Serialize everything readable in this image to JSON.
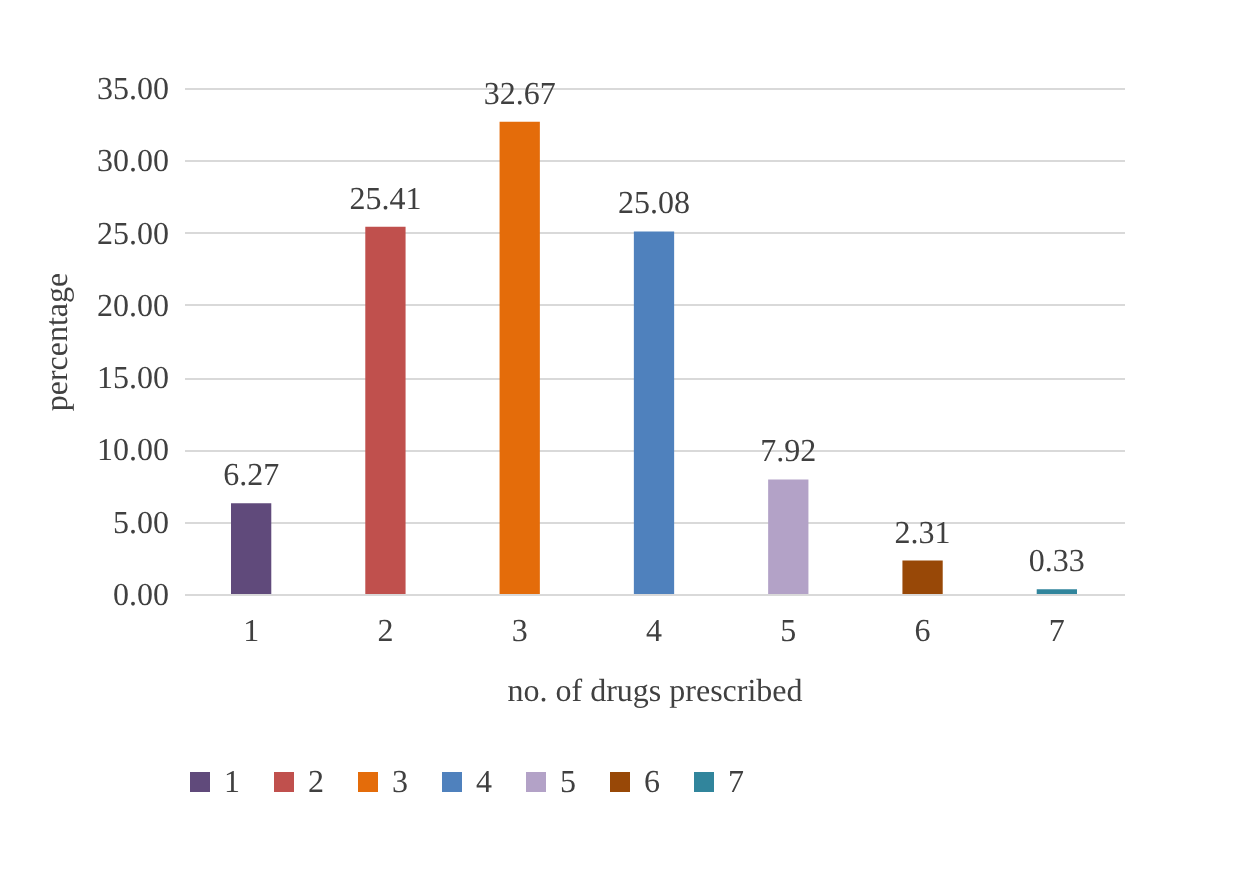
{
  "chart_data": {
    "type": "bar",
    "xlabel": "no. of drugs prescribed",
    "ylabel": "percentage",
    "categories": [
      "1",
      "2",
      "3",
      "4",
      "5",
      "6",
      "7"
    ],
    "stacked": true,
    "series": [
      {
        "name": "1",
        "color": "#604a7b",
        "values": [
          6.27,
          null,
          null,
          null,
          null,
          null,
          null
        ]
      },
      {
        "name": "2",
        "color": "#c0504d",
        "values": [
          null,
          25.41,
          null,
          null,
          null,
          null,
          null
        ]
      },
      {
        "name": "3",
        "color": "#e46c0a",
        "values": [
          null,
          null,
          32.67,
          null,
          null,
          null,
          null
        ]
      },
      {
        "name": "4",
        "color": "#4f81bd",
        "values": [
          null,
          null,
          null,
          25.08,
          null,
          null,
          null
        ]
      },
      {
        "name": "5",
        "color": "#b3a2c7",
        "values": [
          null,
          null,
          null,
          null,
          7.92,
          null,
          null
        ]
      },
      {
        "name": "6",
        "color": "#984807",
        "values": [
          null,
          null,
          null,
          null,
          null,
          2.31,
          null
        ]
      },
      {
        "name": "7",
        "color": "#31859c",
        "values": [
          null,
          null,
          null,
          null,
          null,
          null,
          0.33
        ]
      }
    ],
    "ylim": [
      0,
      35
    ],
    "yticks": [
      {
        "value": 0,
        "label": "0.00"
      },
      {
        "value": 5,
        "label": "5.00"
      },
      {
        "value": 10,
        "label": "10.00"
      },
      {
        "value": 15,
        "label": "15.00"
      },
      {
        "value": 20,
        "label": "20.00"
      },
      {
        "value": 25,
        "label": "25.00"
      },
      {
        "value": 30,
        "label": "30.00"
      },
      {
        "value": 35,
        "label": "35.00"
      }
    ],
    "grid": "y",
    "legend": "bottom",
    "data_labels": true
  }
}
